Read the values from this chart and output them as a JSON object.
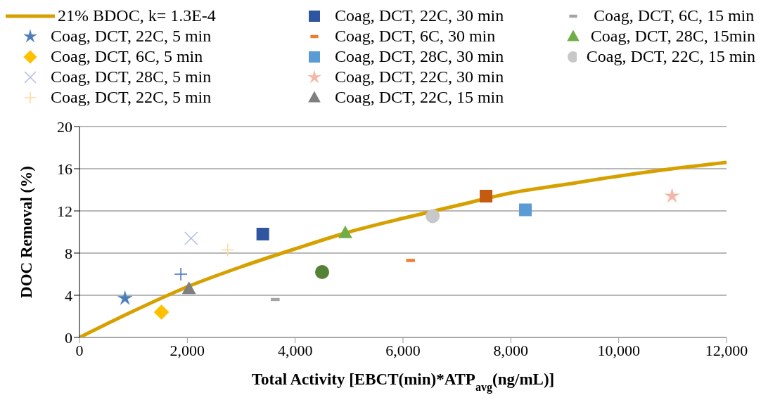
{
  "chart_data": {
    "type": "scatter",
    "xlabel": "Total Activity [EBCT(min)*ATP$_{avg}$(ng/mL)]",
    "ylabel": "DOC Removal (%)",
    "xlim": [
      0,
      12000
    ],
    "xticks": [
      {
        "value": 0,
        "label": "0"
      },
      {
        "value": 2000,
        "label": "2,000"
      },
      {
        "value": 4000,
        "label": "4,000"
      },
      {
        "value": 6000,
        "label": "6,000"
      },
      {
        "value": 8000,
        "label": "8,000"
      },
      {
        "value": 10000,
        "label": "10,000"
      },
      {
        "value": 12000,
        "label": "12,000"
      }
    ],
    "ylim": [
      0,
      20
    ],
    "yticks": [
      0,
      4,
      8,
      12,
      16,
      20
    ],
    "grid": "y",
    "legend": "top",
    "series": [
      {
        "type": "line",
        "name": "21% BDOC, k= 1.3E-4",
        "color": "#d6a100",
        "line_style": "solid",
        "x": [
          0,
          1000,
          2000,
          3000,
          4000,
          5000,
          6000,
          7000,
          8000,
          9000,
          10000,
          11000,
          12000
        ],
        "values": [
          0,
          2.5,
          4.8,
          6.7,
          8.4,
          10.0,
          11.3,
          12.5,
          13.7,
          14.5,
          15.3,
          16.0,
          16.6
        ]
      },
      {
        "name": "Coag, DCT, 22C, 5 min",
        "color": "#4a7ebb",
        "marker": "star",
        "x": [
          844
        ],
        "values": [
          3.7
        ]
      },
      {
        "name": "Coag, DCT, 6C, 5 min",
        "color": "#ffc000",
        "marker": "diamond",
        "x": [
          1520
        ],
        "values": [
          2.4
        ]
      },
      {
        "name": "Coag, DCT, 28C, 5 min",
        "color": "#b4c0e0",
        "marker": "cross",
        "x": [
          2070
        ],
        "values": [
          9.4
        ]
      },
      {
        "name": "Coag, DCT, 22C, 5 min",
        "color": "#ffd9a0",
        "marker": "plus",
        "x": [
          2750
        ],
        "values": [
          8.3
        ]
      },
      {
        "name": "Coag, DCT, 22C, 30 min",
        "color": "#2f55a0",
        "marker": "square",
        "x": [
          3400
        ],
        "values": [
          9.8
        ]
      },
      {
        "name": "Coag, DCT, 6C, 30 min",
        "color": "#ed7d31",
        "x": [
          6140
        ],
        "values": [
          7.3
        ]
      },
      {
        "name": "Coag, DCT, 28C, 30 min",
        "color": "#5b9bd5",
        "marker": "square",
        "x": [
          8270
        ],
        "values": [
          12.1
        ]
      },
      {
        "name": "Coag, DCT, 22C, 30 min",
        "color": "#f4b6a6",
        "marker": "star",
        "x": [
          10990
        ],
        "values": [
          13.4
        ]
      },
      {
        "name": "Coag, DCT, 22C, 15 min",
        "color": "#7f7f7f",
        "marker": "triangle",
        "x": [
          2030
        ],
        "values": [
          4.6
        ]
      },
      {
        "name": "Coag, DCT, 6C, 15 min",
        "color": "#a5a5a5",
        "x": [
          3630
        ],
        "values": [
          3.6
        ]
      },
      {
        "name": "Coag, DCT, 28C, 15min",
        "color": "#70ad47",
        "marker": "triangle",
        "x": [
          4930
        ],
        "values": [
          9.9
        ]
      },
      {
        "name": "Coag, DCT, 22C, 15 min",
        "color": "#c8c8c8",
        "marker": "circle",
        "x": [
          6550
        ],
        "values": [
          11.5
        ]
      },
      {
        "color": "#4472c4",
        "marker": "plus",
        "x": [
          1880
        ],
        "values": [
          6.0
        ]
      },
      {
        "color": "#548235",
        "marker": "circle",
        "x": [
          4500
        ],
        "values": [
          6.2
        ]
      },
      {
        "color": "#c55a11",
        "marker": "square",
        "x": [
          7540
        ],
        "values": [
          13.4
        ]
      }
    ]
  }
}
